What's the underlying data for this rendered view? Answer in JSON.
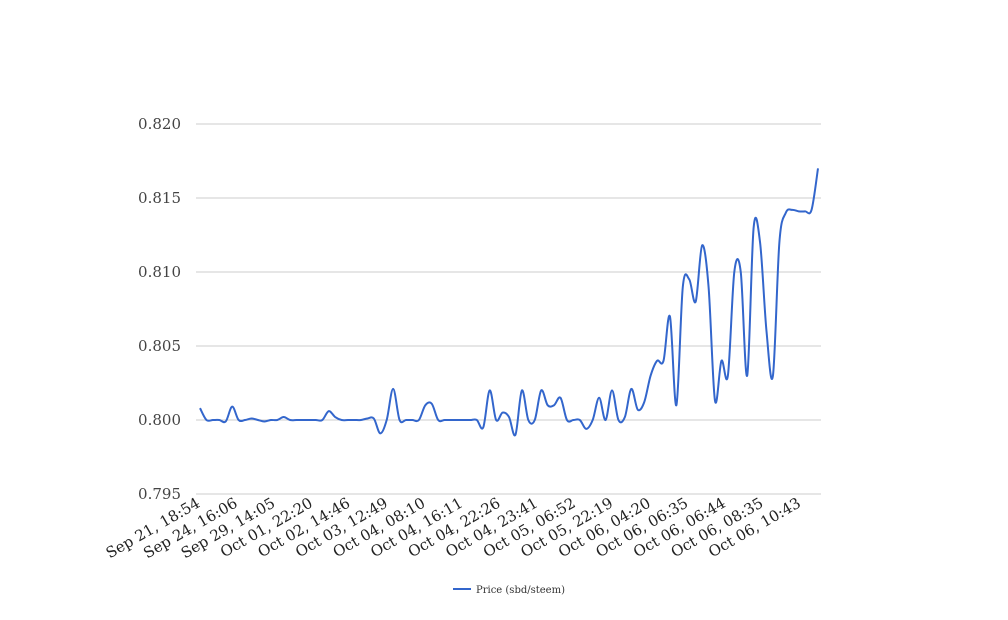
{
  "chart_data": {
    "type": "line",
    "title": "",
    "xlabel": "",
    "ylabel": "",
    "ylim": [
      0.795,
      0.82
    ],
    "yticks": [
      "0.795",
      "0.800",
      "0.805",
      "0.810",
      "0.815",
      "0.820"
    ],
    "grid": true,
    "legend_position": "bottom",
    "x_tick_labels": [
      "Sep 21, 18:54",
      "Sep 24, 16:06",
      "Sep 29, 14:05",
      "Oct 01, 22:20",
      "Oct 02, 14:46",
      "Oct 03, 12:49",
      "Oct 04, 08:10",
      "Oct 04, 16:11",
      "Oct 04, 22:26",
      "Oct 04, 23:41",
      "Oct 05, 06:52",
      "Oct 05, 22:19",
      "Oct 06, 04:20",
      "Oct 06, 06:35",
      "Oct 06, 06:44",
      "Oct 06, 08:35",
      "Oct 06, 10:43"
    ],
    "series": [
      {
        "name": "Price (sbd/steem)",
        "color": "#3366cc",
        "values": [
          0.8008,
          0.8,
          0.8,
          0.8,
          0.7999,
          0.8009,
          0.8,
          0.8,
          0.8001,
          0.8,
          0.7999,
          0.8,
          0.8,
          0.8002,
          0.8,
          0.8,
          0.8,
          0.8,
          0.8,
          0.8,
          0.8006,
          0.8002,
          0.8,
          0.8,
          0.8,
          0.8,
          0.8001,
          0.8001,
          0.7991,
          0.8,
          0.8021,
          0.8,
          0.8,
          0.8,
          0.8,
          0.801,
          0.8011,
          0.8,
          0.8,
          0.8,
          0.8,
          0.8,
          0.8,
          0.8,
          0.7995,
          0.802,
          0.8,
          0.8005,
          0.8002,
          0.799,
          0.802,
          0.8,
          0.8,
          0.802,
          0.801,
          0.801,
          0.8015,
          0.8,
          0.8,
          0.8,
          0.7994,
          0.8,
          0.8015,
          0.8,
          0.802,
          0.8,
          0.8002,
          0.8021,
          0.8007,
          0.8012,
          0.803,
          0.804,
          0.804,
          0.807,
          0.801,
          0.809,
          0.8095,
          0.808,
          0.8118,
          0.809,
          0.8013,
          0.804,
          0.803,
          0.81,
          0.81,
          0.803,
          0.813,
          0.812,
          0.806,
          0.803,
          0.812,
          0.814,
          0.8142,
          0.8141,
          0.8141,
          0.8142,
          0.817
        ]
      }
    ]
  }
}
